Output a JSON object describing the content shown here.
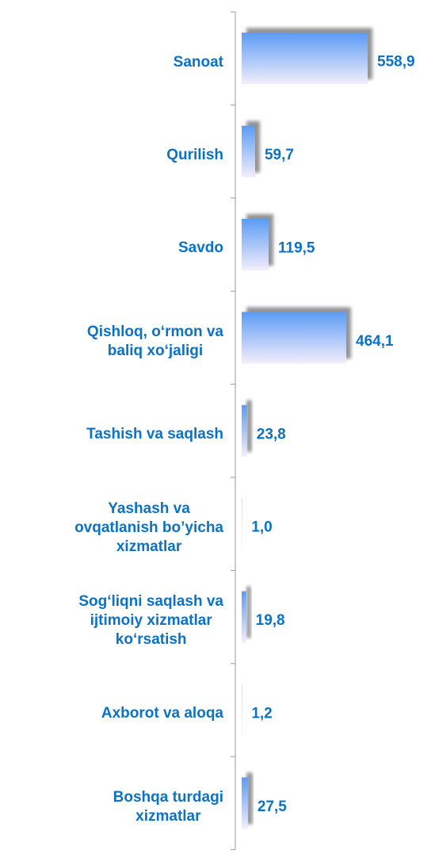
{
  "chart_data": {
    "type": "bar",
    "orientation": "horizontal",
    "categories": [
      "Sanoat",
      "Qurilish",
      "Savdo",
      "Qishloq, o‘rmon va\nbaliq xo‘jaligi",
      "Tashish va saqlash",
      "Yashash va\novqatlanish bo’yicha\nxizmatlar",
      "Sog‘liqni saqlash va\nijtimoiy xizmatlar\nko‘rsatish",
      "Axborot va aloqa",
      "Boshqa turdagi\nxizmatlar"
    ],
    "values": [
      558.9,
      59.7,
      119.5,
      464.1,
      23.8,
      1.0,
      19.8,
      1.2,
      27.5
    ],
    "value_labels": [
      "558,9",
      "59,7",
      "119,5",
      "464,1",
      "23,8",
      "1,0",
      "19,8",
      "1,2",
      "27,5"
    ],
    "color": "#5b9bf5"
  }
}
